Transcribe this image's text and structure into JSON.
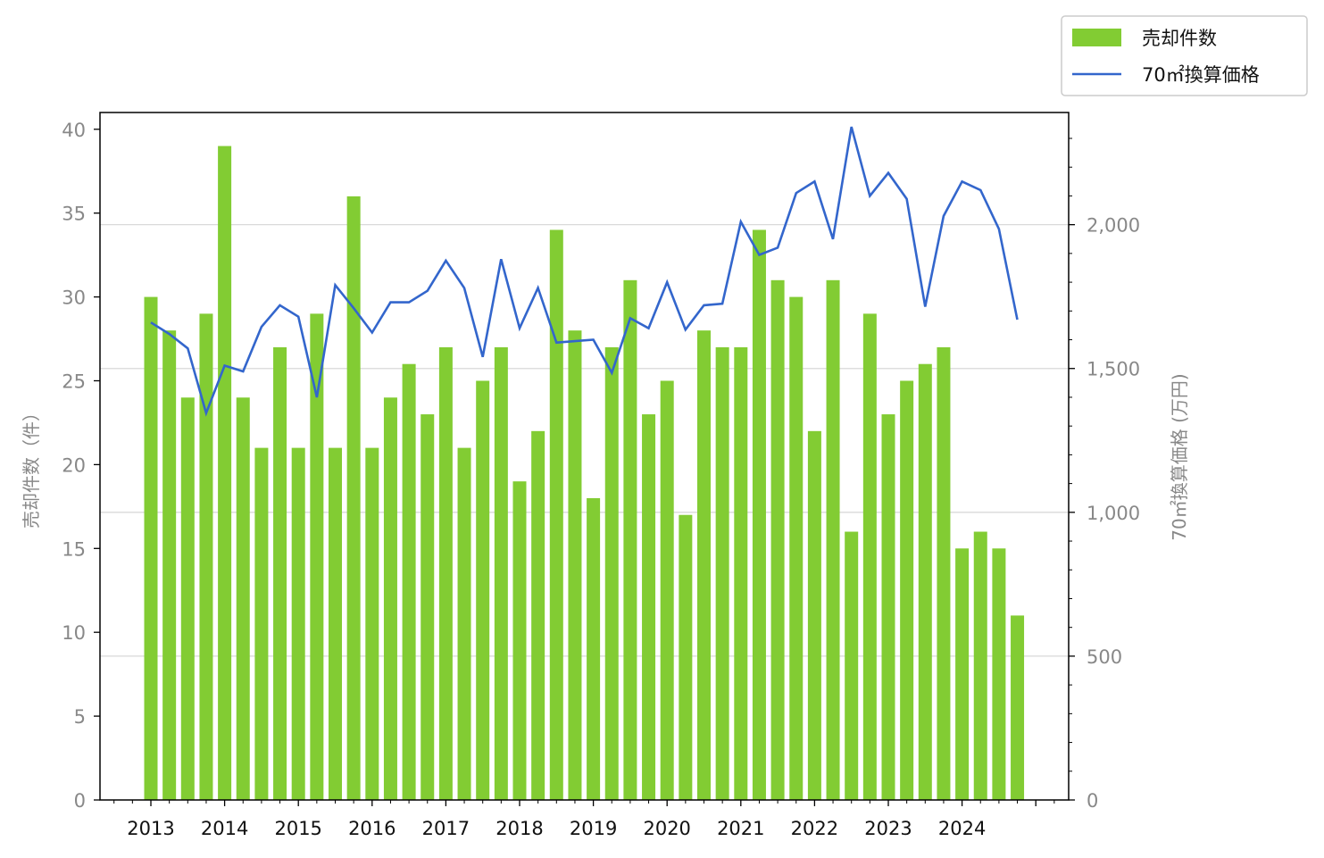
{
  "chart_data": {
    "type": "bar",
    "title": "",
    "x": [
      "2013Q1",
      "2013Q2",
      "2013Q3",
      "2013Q4",
      "2014Q1",
      "2014Q2",
      "2014Q3",
      "2014Q4",
      "2015Q1",
      "2015Q2",
      "2015Q3",
      "2015Q4",
      "2016Q1",
      "2016Q2",
      "2016Q3",
      "2016Q4",
      "2017Q1",
      "2017Q2",
      "2017Q3",
      "2017Q4",
      "2018Q1",
      "2018Q2",
      "2018Q3",
      "2018Q4",
      "2019Q1",
      "2019Q2",
      "2019Q3",
      "2019Q4",
      "2020Q1",
      "2020Q2",
      "2020Q3",
      "2020Q4",
      "2021Q1",
      "2021Q2",
      "2021Q3",
      "2021Q4",
      "2022Q1",
      "2022Q2",
      "2022Q3",
      "2022Q4",
      "2023Q1",
      "2023Q2",
      "2023Q3",
      "2023Q4",
      "2024Q1",
      "2024Q2",
      "2024Q3",
      "2024Q4"
    ],
    "year_ticks": [
      "2013",
      "2014",
      "2015",
      "2016",
      "2017",
      "2018",
      "2019",
      "2020",
      "2021",
      "2022",
      "2023",
      "2024"
    ],
    "series": [
      {
        "name": "売却件数",
        "kind": "bar",
        "axis": "left",
        "color": "#82cc33",
        "values": [
          30,
          28,
          24,
          29,
          39,
          24,
          21,
          27,
          21,
          29,
          21,
          36,
          21,
          24,
          26,
          23,
          27,
          21,
          25,
          27,
          19,
          22,
          34,
          28,
          18,
          27,
          31,
          23,
          25,
          17,
          28,
          27,
          27,
          34,
          31,
          30,
          22,
          31,
          16,
          29,
          23,
          25,
          26,
          27,
          15,
          16,
          15,
          11
        ]
      },
      {
        "name": "70㎡換算価格",
        "kind": "line",
        "axis": "right",
        "color": "#3366cc",
        "values": [
          1660,
          1620,
          1570,
          1345,
          1510,
          1490,
          1645,
          1720,
          1680,
          1400,
          1790,
          1710,
          1625,
          1730,
          1730,
          1770,
          1875,
          1780,
          1540,
          1880,
          1640,
          1780,
          1590,
          1595,
          1600,
          1485,
          1675,
          1640,
          1800,
          1635,
          1720,
          1725,
          2010,
          1895,
          1920,
          2110,
          2150,
          1950,
          2340,
          2100,
          2180,
          2090,
          1715,
          2030,
          2150,
          2120,
          1985,
          1670
        ]
      }
    ],
    "left_axis": {
      "label": "売却件数（件）",
      "ylim": [
        0,
        41
      ],
      "ticks": [
        "0",
        "5",
        "10",
        "15",
        "20",
        "25",
        "30",
        "35",
        "40"
      ],
      "tick_values": [
        0,
        5,
        10,
        15,
        20,
        25,
        30,
        35,
        40
      ]
    },
    "right_axis": {
      "label": "70㎡換算価格 (万円)",
      "ylim": [
        0,
        2390
      ],
      "ticks": [
        "0",
        "500",
        "1,000",
        "1,500",
        "2,000"
      ],
      "tick_values": [
        0,
        500,
        1000,
        1500,
        2000
      ]
    },
    "grid": "horizontal (right axis)",
    "legend_position": "top-right, outside plot"
  }
}
